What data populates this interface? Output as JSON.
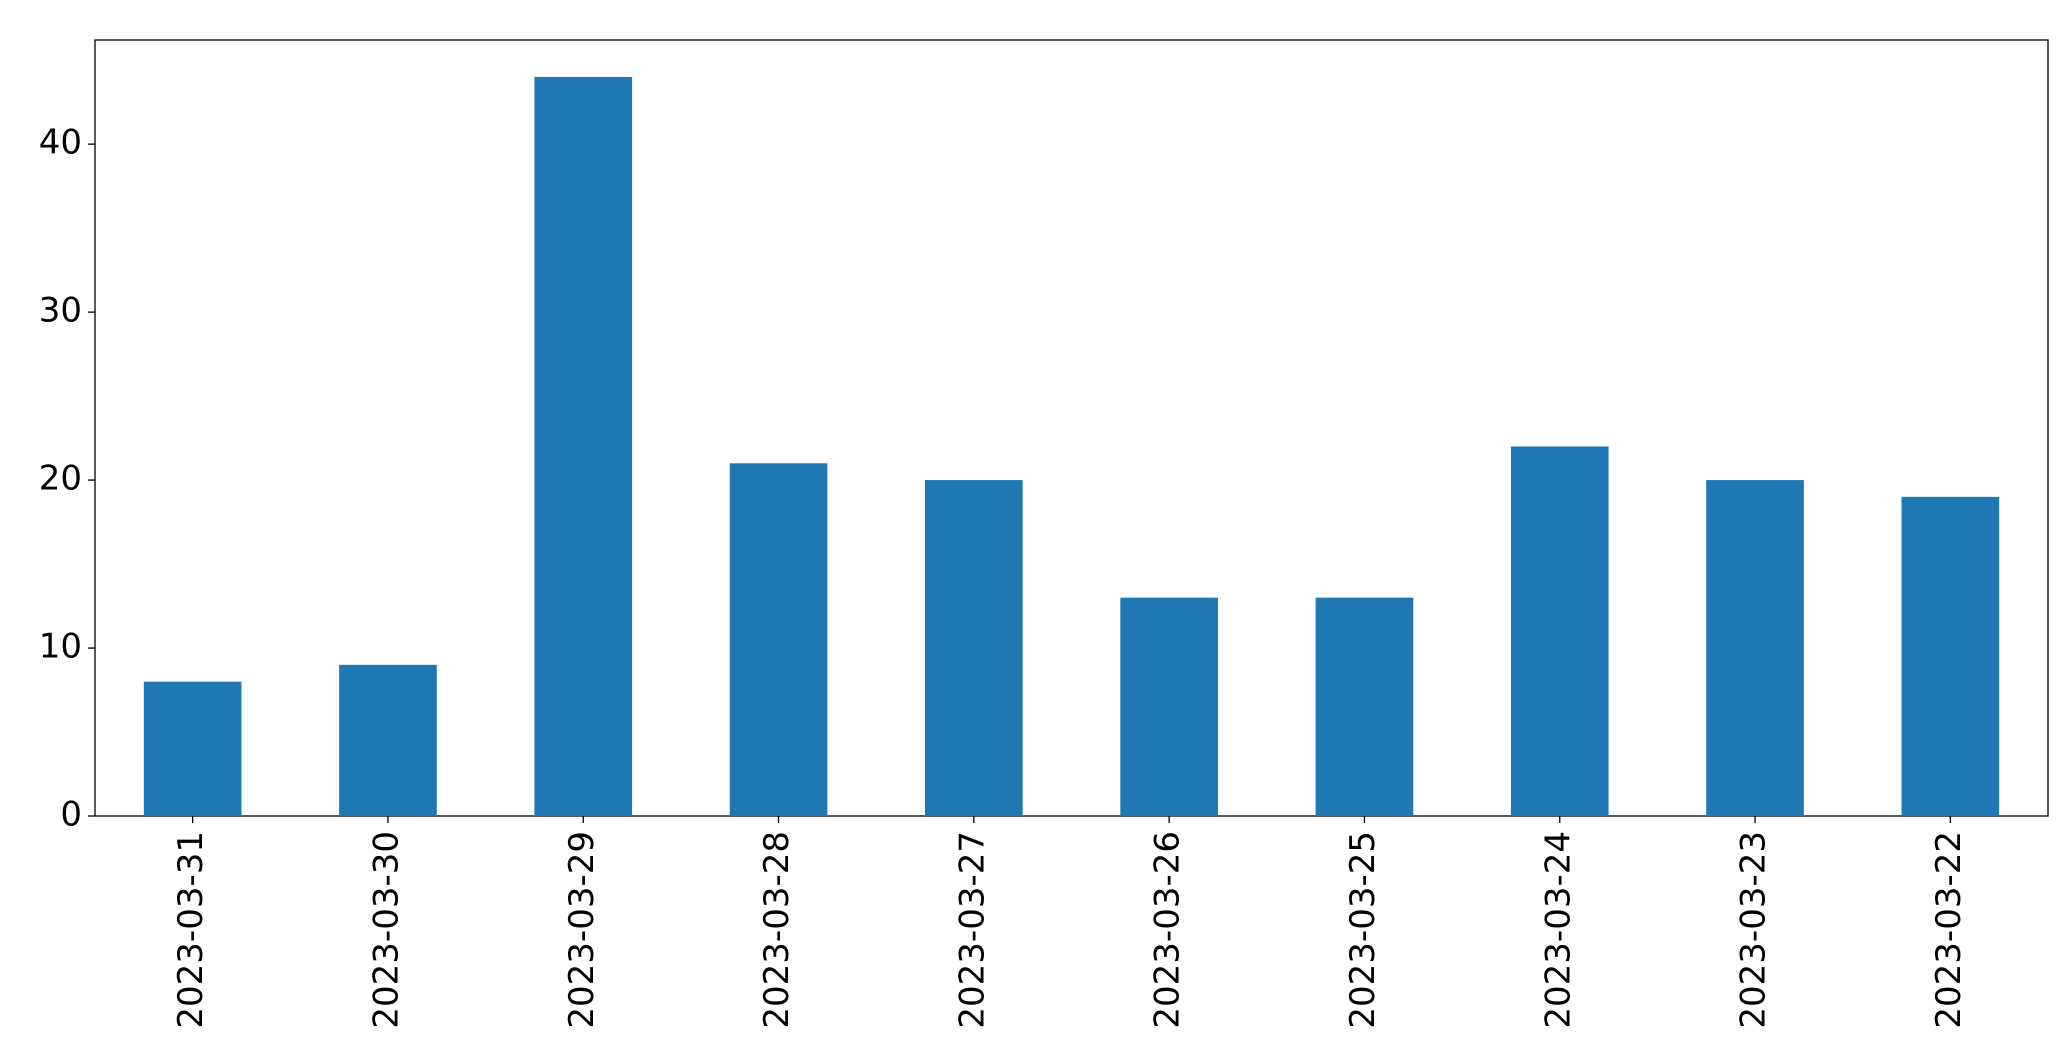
{
  "chart_data": {
    "type": "bar",
    "categories": [
      "2023-03-31",
      "2023-03-30",
      "2023-03-29",
      "2023-03-28",
      "2023-03-27",
      "2023-03-26",
      "2023-03-25",
      "2023-03-24",
      "2023-03-23",
      "2023-03-22"
    ],
    "values": [
      8,
      9,
      44,
      21,
      20,
      13,
      13,
      22,
      20,
      19
    ],
    "color": "#1f77b4",
    "ylim": [
      0,
      46.2
    ],
    "yticks": [
      0,
      10,
      20,
      30,
      40
    ],
    "grid": false
  }
}
